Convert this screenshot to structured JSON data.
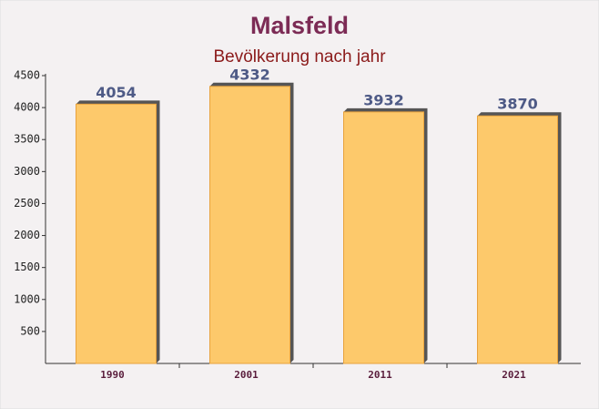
{
  "chart_data": {
    "type": "bar",
    "title": "Malsfeld",
    "subtitle": "Bevölkerung nach jahr",
    "categories": [
      "1990",
      "2001",
      "2011",
      "2021"
    ],
    "values": [
      4054,
      4332,
      3932,
      3870
    ],
    "color": "#fdc96b",
    "ylim": [
      0,
      4500
    ],
    "yticks": [
      500,
      1000,
      1500,
      2000,
      2500,
      3000,
      3500,
      4000,
      4500
    ]
  }
}
